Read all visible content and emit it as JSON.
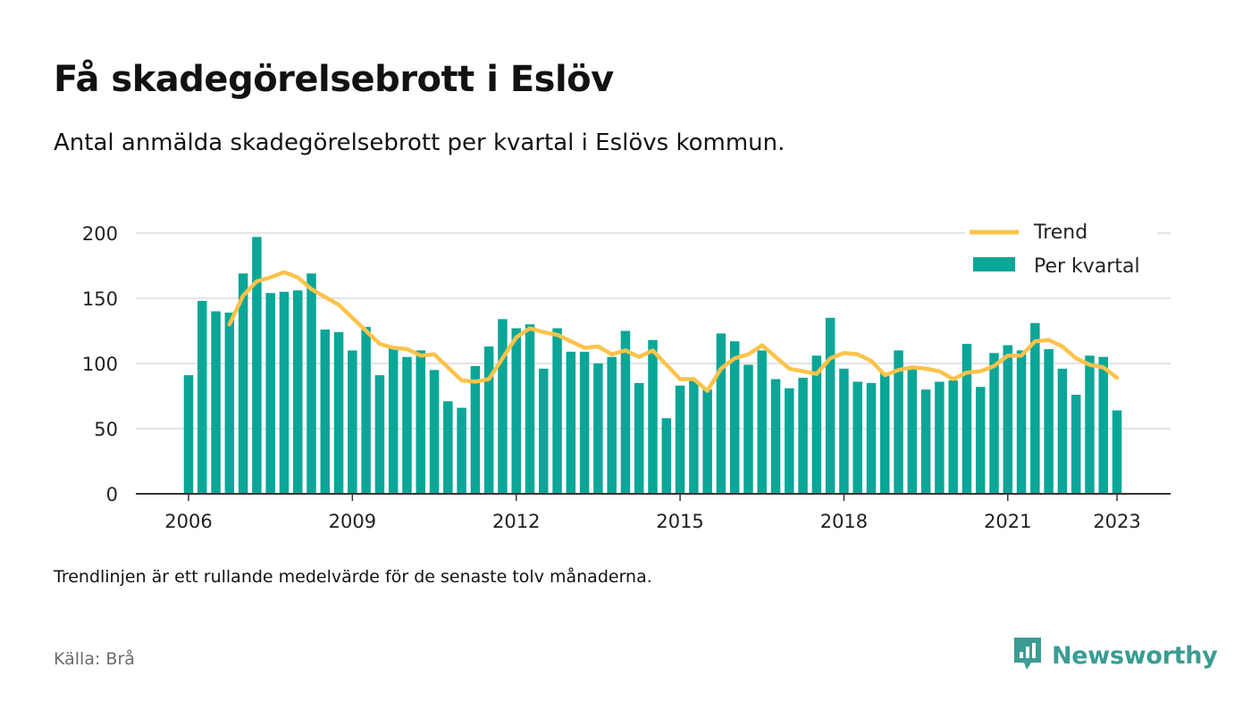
{
  "header": {
    "title": "Få skadegörelsebrott i Eslöv",
    "subtitle": "Antal anmälda skadegörelsebrott per kvartal i Eslövs kommun."
  },
  "footer": {
    "note": "Trendlinjen är ett rullande medelvärde för de senaste tolv månaderna.",
    "source": "Källa: Brå",
    "brand": "Newsworthy"
  },
  "colors": {
    "bar": "#0aa698",
    "trend": "#fbc34a",
    "grid": "#dcdcdc",
    "axis": "#333333",
    "brand": "#3b9c93"
  },
  "chart_data": {
    "type": "bar",
    "x_start": "2006-Q1",
    "x_ticks": [
      "2006",
      "2009",
      "2012",
      "2015",
      "2018",
      "2021",
      "2023"
    ],
    "y_ticks": [
      "0",
      "50",
      "100",
      "150",
      "200"
    ],
    "ylim": [
      0,
      200
    ],
    "grid": true,
    "legend_position": "top-right",
    "legend": {
      "trend": "Trend",
      "bars": "Per kvartal"
    },
    "series": [
      {
        "name": "Per kvartal",
        "type": "bar",
        "values": [
          91,
          148,
          140,
          139,
          169,
          197,
          154,
          155,
          156,
          169,
          126,
          124,
          110,
          128,
          91,
          112,
          105,
          110,
          95,
          71,
          66,
          98,
          113,
          134,
          127,
          130,
          96,
          127,
          109,
          109,
          100,
          105,
          125,
          85,
          118,
          58,
          83,
          87,
          80,
          123,
          117,
          99,
          110,
          88,
          81,
          89,
          106,
          135,
          96,
          86,
          85,
          93,
          110,
          97,
          80,
          86,
          87,
          115,
          82,
          108,
          114,
          110,
          131,
          111,
          96,
          76,
          106,
          105,
          64
        ]
      },
      {
        "name": "Trend",
        "type": "line",
        "values": [
          null,
          null,
          null,
          130,
          152,
          163,
          166,
          170,
          166,
          157,
          151,
          145,
          135,
          125,
          115,
          112,
          111,
          106,
          107,
          97,
          87,
          86,
          88,
          104,
          120,
          127,
          124,
          122,
          117,
          112,
          113,
          107,
          110,
          105,
          110,
          99,
          88,
          88,
          79,
          96,
          104,
          107,
          114,
          105,
          96,
          94,
          92,
          104,
          108,
          107,
          102,
          91,
          95,
          97,
          96,
          94,
          88,
          93,
          94,
          98,
          106,
          106,
          117,
          118,
          113,
          104,
          99,
          97,
          89
        ]
      }
    ]
  }
}
